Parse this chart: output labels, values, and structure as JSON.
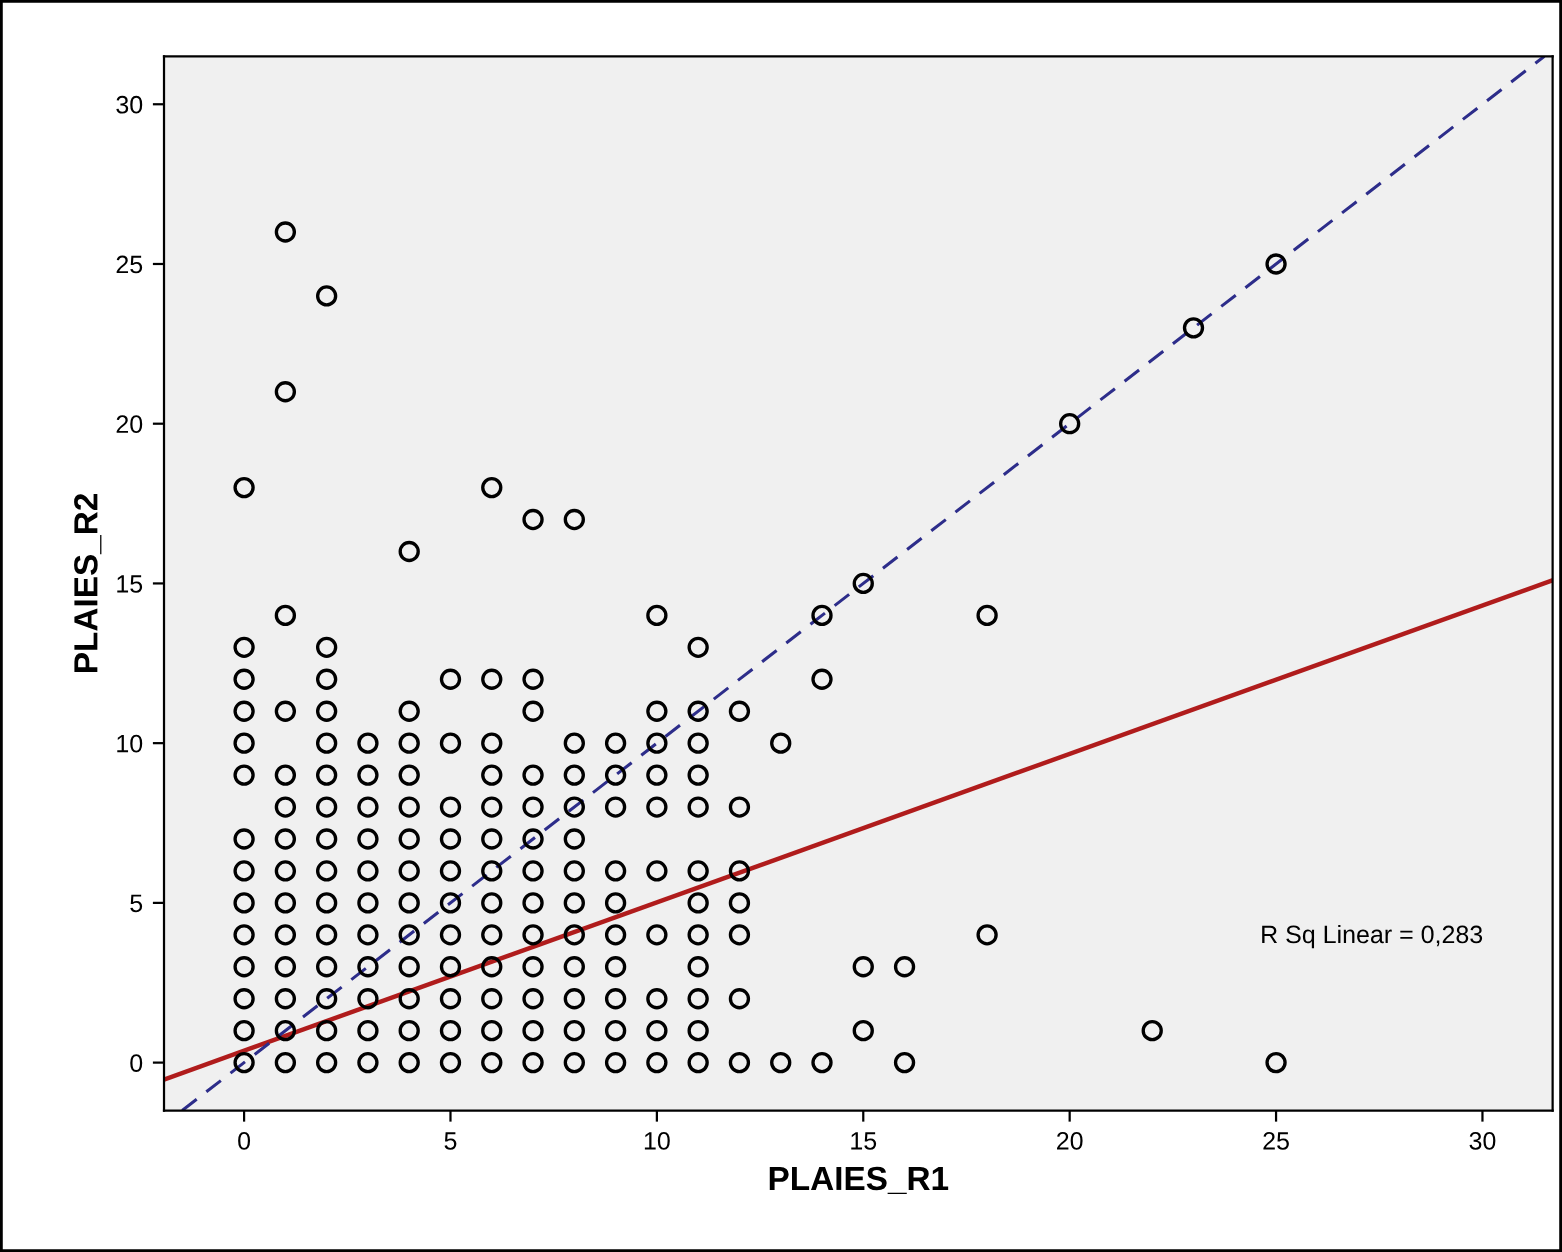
{
  "chart_data": {
    "type": "scatter",
    "xlabel": "PLAIES_R1",
    "ylabel": "PLAIES_R2",
    "xlim": [
      -1.94,
      31.7
    ],
    "ylim": [
      -1.5,
      31.5
    ],
    "xticks": [
      0,
      5,
      10,
      15,
      20,
      25,
      30
    ],
    "yticks": [
      0,
      5,
      10,
      15,
      20,
      25,
      30
    ],
    "grid": false,
    "marker": "circle",
    "annotations": [
      "R Sq Linear = 0,283"
    ],
    "series": [
      {
        "color": "#000000",
        "x": [
          0,
          0,
          0,
          0,
          0,
          0,
          0,
          0,
          0,
          0,
          0,
          0,
          0,
          0,
          1,
          1,
          1,
          1,
          1,
          1,
          1,
          1,
          1,
          1,
          1,
          1,
          1,
          1,
          2,
          2,
          2,
          2,
          2,
          2,
          2,
          2,
          2,
          2,
          2,
          2,
          2,
          2,
          2,
          3,
          3,
          3,
          3,
          3,
          3,
          3,
          3,
          3,
          3,
          3,
          4,
          4,
          4,
          4,
          4,
          4,
          4,
          4,
          4,
          4,
          4,
          4,
          4,
          5,
          5,
          5,
          5,
          5,
          5,
          5,
          5,
          5,
          5,
          5,
          6,
          6,
          6,
          6,
          6,
          6,
          6,
          6,
          6,
          6,
          6,
          6,
          6,
          7,
          7,
          7,
          7,
          7,
          7,
          7,
          7,
          7,
          7,
          7,
          7,
          7,
          8,
          8,
          8,
          8,
          8,
          8,
          8,
          8,
          8,
          8,
          8,
          8,
          9,
          9,
          9,
          9,
          9,
          9,
          9,
          9,
          9,
          9,
          10,
          10,
          10,
          10,
          10,
          10,
          10,
          10,
          10,
          10,
          11,
          11,
          11,
          11,
          11,
          11,
          11,
          11,
          11,
          11,
          11,
          11,
          12,
          12,
          12,
          12,
          12,
          12,
          12,
          13,
          13,
          14,
          14,
          14,
          15,
          15,
          15,
          16,
          16,
          18,
          18,
          20,
          22,
          23,
          25,
          25
        ],
        "values": [
          18,
          13,
          12,
          11,
          10,
          9,
          7,
          6,
          5,
          4,
          3,
          2,
          1,
          0,
          26,
          21,
          14,
          11,
          9,
          8,
          7,
          6,
          5,
          4,
          3,
          2,
          1,
          0,
          24,
          13,
          12,
          11,
          10,
          9,
          8,
          7,
          6,
          5,
          4,
          3,
          2,
          1,
          0,
          10,
          9,
          8,
          7,
          6,
          5,
          4,
          3,
          2,
          1,
          0,
          16,
          11,
          10,
          9,
          8,
          7,
          6,
          5,
          4,
          3,
          2,
          1,
          0,
          12,
          10,
          8,
          7,
          6,
          5,
          4,
          3,
          2,
          1,
          0,
          18,
          12,
          10,
          9,
          8,
          7,
          6,
          5,
          4,
          3,
          2,
          1,
          0,
          17,
          12,
          11,
          9,
          8,
          7,
          6,
          5,
          4,
          3,
          2,
          1,
          0,
          17,
          10,
          9,
          8,
          7,
          6,
          5,
          4,
          3,
          2,
          1,
          0,
          10,
          9,
          8,
          6,
          5,
          4,
          3,
          2,
          1,
          0,
          14,
          11,
          10,
          9,
          8,
          6,
          4,
          2,
          1,
          0,
          13,
          11,
          10,
          9,
          8,
          6,
          5,
          4,
          3,
          2,
          1,
          0,
          11,
          8,
          6,
          5,
          4,
          2,
          0,
          10,
          0,
          14,
          12,
          0,
          15,
          3,
          1,
          3,
          0,
          14,
          4,
          20,
          1,
          23,
          25,
          0
        ]
      },
      {
        "type": "line",
        "color": "#b01c1c",
        "line_style": "solid",
        "marker": "none",
        "x": [
          -1.94,
          31.7
        ],
        "values": [
          -0.53,
          15.1
        ]
      },
      {
        "type": "line",
        "color": "#2d2d8a",
        "line_style": "dashed",
        "marker": "none",
        "x": [
          -1.5,
          31.5
        ],
        "values": [
          -1.5,
          31.5
        ]
      }
    ]
  }
}
